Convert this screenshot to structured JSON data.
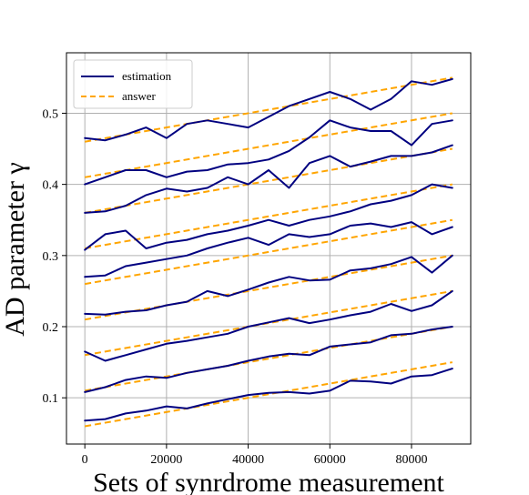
{
  "chart_data": {
    "type": "line",
    "xlabel": "Sets of synrdrome measurement",
    "ylabel": "AD parameter γ",
    "xlim": [
      -4500,
      94500
    ],
    "ylim": [
      0.035,
      0.585
    ],
    "xticks": [
      0,
      20000,
      40000,
      60000,
      80000
    ],
    "xtick_labels": [
      "0",
      "20000",
      "40000",
      "60000",
      "80000"
    ],
    "yticks": [
      0.1,
      0.2,
      0.3,
      0.4,
      0.5
    ],
    "ytick_labels": [
      "0.1",
      "0.2",
      "0.3",
      "0.4",
      "0.5"
    ],
    "grid": true,
    "legend": {
      "position": "top-left",
      "entries": [
        {
          "label": "estimation",
          "color": "#000080",
          "style": "solid"
        },
        {
          "label": "answer",
          "color": "#FFA500",
          "style": "dashed"
        }
      ]
    },
    "x": [
      0,
      5000,
      10000,
      15000,
      20000,
      25000,
      30000,
      35000,
      40000,
      45000,
      50000,
      55000,
      60000,
      65000,
      70000,
      75000,
      80000,
      85000,
      90000
    ],
    "answer_series": [
      {
        "name": "answer",
        "values": [
          0.06,
          0.15
        ]
      },
      {
        "name": "answer",
        "values": [
          0.11,
          0.2
        ]
      },
      {
        "name": "answer",
        "values": [
          0.16,
          0.25
        ]
      },
      {
        "name": "answer",
        "values": [
          0.21,
          0.3
        ]
      },
      {
        "name": "answer",
        "values": [
          0.26,
          0.35
        ]
      },
      {
        "name": "answer",
        "values": [
          0.31,
          0.4
        ]
      },
      {
        "name": "answer",
        "values": [
          0.36,
          0.45
        ]
      },
      {
        "name": "answer",
        "values": [
          0.41,
          0.5
        ]
      },
      {
        "name": "answer",
        "values": [
          0.46,
          0.55
        ]
      }
    ],
    "estimation_series": [
      {
        "name": "estimation",
        "values": [
          0.068,
          0.07,
          0.078,
          0.082,
          0.088,
          0.085,
          0.092,
          0.098,
          0.104,
          0.107,
          0.108,
          0.106,
          0.11,
          0.124,
          0.123,
          0.12,
          0.13,
          0.132,
          0.141
        ]
      },
      {
        "name": "estimation",
        "values": [
          0.108,
          0.115,
          0.125,
          0.13,
          0.128,
          0.135,
          0.14,
          0.145,
          0.152,
          0.158,
          0.162,
          0.16,
          0.172,
          0.175,
          0.178,
          0.188,
          0.19,
          0.196,
          0.2
        ]
      },
      {
        "name": "estimation",
        "values": [
          0.165,
          0.152,
          0.16,
          0.168,
          0.176,
          0.18,
          0.185,
          0.19,
          0.2,
          0.206,
          0.212,
          0.205,
          0.21,
          0.216,
          0.221,
          0.232,
          0.222,
          0.23,
          0.25
        ]
      },
      {
        "name": "estimation",
        "values": [
          0.218,
          0.217,
          0.221,
          0.223,
          0.23,
          0.235,
          0.25,
          0.243,
          0.252,
          0.262,
          0.27,
          0.265,
          0.266,
          0.279,
          0.282,
          0.288,
          0.298,
          0.276,
          0.3
        ]
      },
      {
        "name": "estimation",
        "values": [
          0.27,
          0.272,
          0.285,
          0.29,
          0.295,
          0.3,
          0.31,
          0.318,
          0.325,
          0.315,
          0.33,
          0.326,
          0.33,
          0.342,
          0.345,
          0.34,
          0.347,
          0.33,
          0.34
        ]
      },
      {
        "name": "estimation",
        "values": [
          0.308,
          0.33,
          0.335,
          0.31,
          0.318,
          0.322,
          0.33,
          0.335,
          0.342,
          0.35,
          0.342,
          0.35,
          0.355,
          0.362,
          0.372,
          0.377,
          0.385,
          0.4,
          0.395
        ]
      },
      {
        "name": "estimation",
        "values": [
          0.36,
          0.362,
          0.37,
          0.385,
          0.394,
          0.39,
          0.395,
          0.41,
          0.4,
          0.42,
          0.395,
          0.43,
          0.44,
          0.425,
          0.432,
          0.44,
          0.44,
          0.445,
          0.455
        ]
      },
      {
        "name": "estimation",
        "values": [
          0.4,
          0.41,
          0.42,
          0.42,
          0.41,
          0.418,
          0.42,
          0.428,
          0.43,
          0.435,
          0.447,
          0.466,
          0.49,
          0.48,
          0.475,
          0.475,
          0.455,
          0.485,
          0.49
        ]
      },
      {
        "name": "estimation",
        "values": [
          0.465,
          0.462,
          0.47,
          0.48,
          0.465,
          0.485,
          0.49,
          0.485,
          0.48,
          0.495,
          0.51,
          0.52,
          0.53,
          0.52,
          0.505,
          0.52,
          0.545,
          0.54,
          0.548
        ]
      }
    ]
  }
}
